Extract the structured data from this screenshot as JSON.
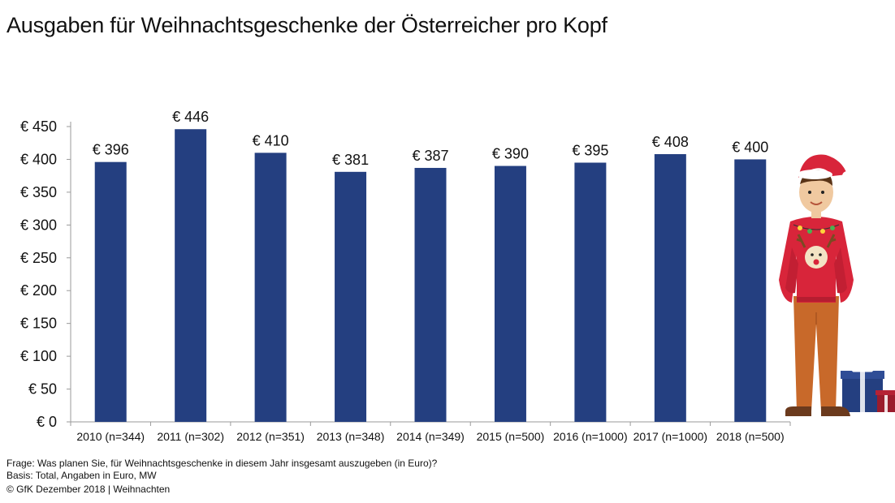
{
  "chart_data": {
    "type": "bar",
    "title": "Ausgaben für Weihnachtsgeschenke der Österreicher pro Kopf",
    "categories": [
      "2010 (n=344)",
      "2011 (n=302)",
      "2012 (n=351)",
      "2013 (n=348)",
      "2014 (n=349)",
      "2015 (n=500)",
      "2016 (n=1000)",
      "2017 (n=1000)",
      "2018 (n=500)"
    ],
    "values": [
      396,
      446,
      410,
      381,
      387,
      390,
      395,
      408,
      400
    ],
    "value_labels": [
      "€ 396",
      "€ 446",
      "€ 410",
      "€ 381",
      "€ 387",
      "€ 390",
      "€ 395",
      "€ 408",
      "€ 400"
    ],
    "y_ticks": [
      0,
      50,
      100,
      150,
      200,
      250,
      300,
      350,
      400,
      450
    ],
    "y_tick_labels": [
      "€ 0",
      "€ 50",
      "€ 100",
      "€ 150",
      "€ 200",
      "€ 250",
      "€ 300",
      "€ 350",
      "€ 400",
      "€ 450"
    ],
    "ylim": [
      0,
      450
    ],
    "grid": false,
    "legend": "none",
    "bar_color": "#243f80"
  },
  "notes": {
    "question": "Frage: Was planen Sie, für Weihnachtsgeschenke in diesem Jahr insgesamt auszugeben (in Euro)?",
    "basis": "Basis: Total, Angaben in Euro, MW",
    "copyright": "© GfK Dezember 2018 | Weihnachten"
  },
  "illustration": {
    "icon": "christmas-sweater-man-illustration",
    "gifts_icon": "gift-boxes-illustration",
    "colors": {
      "sweater": "#d8253a",
      "trousers": "#c8692a",
      "hat": "#d8253a",
      "gift_blue": "#243f80",
      "gift_red": "#9b1c2c"
    }
  }
}
